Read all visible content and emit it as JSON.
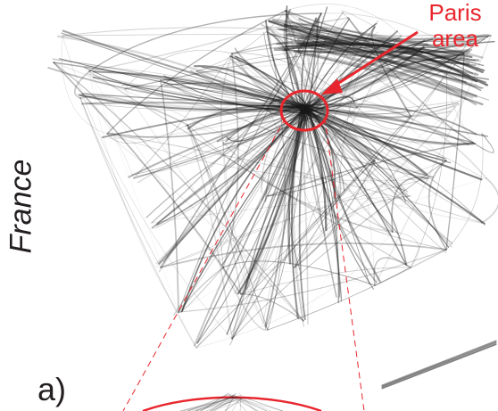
{
  "map": {
    "region_label": "France",
    "callout_label_line1": "Paris",
    "callout_label_line2": "area",
    "panel_label": "a)"
  },
  "colors": {
    "edge_ink": "#1a1a1a",
    "highlight_red": "#e8262d",
    "text_dark": "#231f20",
    "background": "#ffffff"
  },
  "icons": {
    "callout_pointer": "arrow-icon",
    "hub_marker": "circle-highlight-icon",
    "zoom_guides": "dashed-zoom-lines-icon"
  }
}
